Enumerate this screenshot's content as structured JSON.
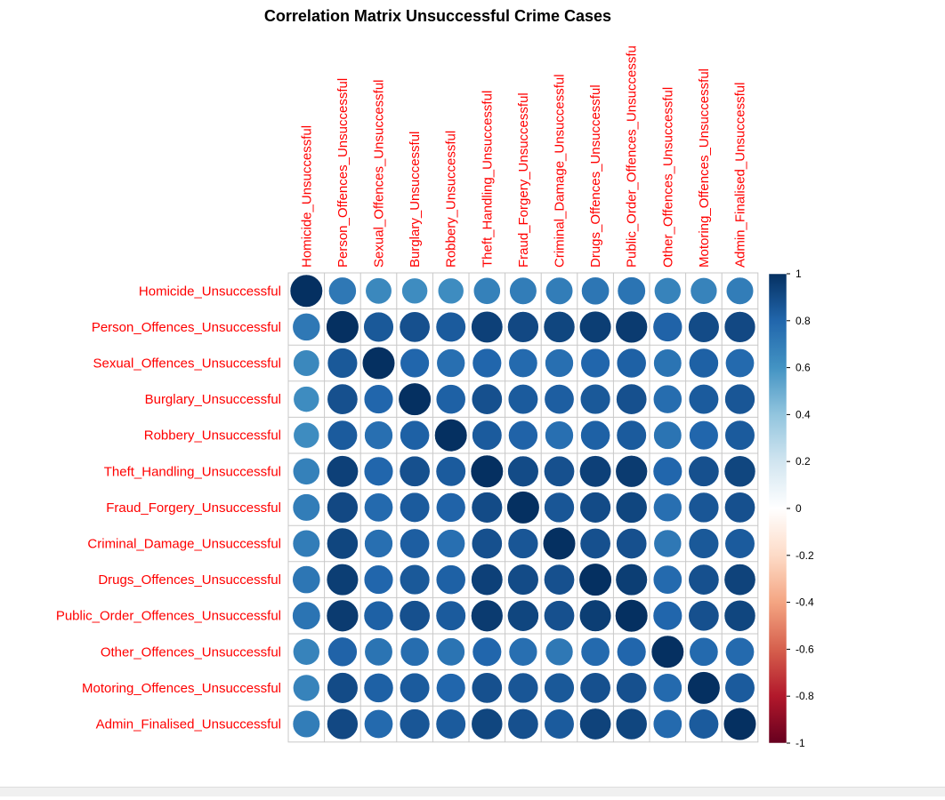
{
  "chart_data": {
    "type": "heatmap",
    "title": "Correlation Matrix Unsuccessful Crime Cases",
    "labels": [
      "Homicide_Unsuccessful",
      "Person_Offences_Unsuccessful",
      "Sexual_Offences_Unsuccessful",
      "Burglary_Unsuccessful",
      "Robbery_Unsuccessful",
      "Theft_Handling_Unsuccessful",
      "Fraud_Forgery_Unsuccessful",
      "Criminal_Damage_Unsuccessful",
      "Drugs_Offences_Unsuccessful",
      "Public_Order_Offences_Unsuccessful",
      "Other_Offences_Unsuccessful",
      "Motoring_Offences_Unsuccessful",
      "Admin_Finalised_Unsuccessful"
    ],
    "column_labels": [
      "Homicide_Unsuccessful",
      "Person_Offences_Unsuccessful",
      "Sexual_Offences_Unsuccessful",
      "Burglary_Unsuccessful",
      "Robbery_Unsuccessful",
      "Theft_Handling_Unsuccessful",
      "Fraud_Forgery_Unsuccessful",
      "Criminal_Damage_Unsuccessful",
      "Drugs_Offences_Unsuccessful",
      "Public_Order_Offences_Unsuccessfu",
      "Other_Offences_Unsuccessful",
      "Motoring_Offences_Unsuccessful",
      "Admin_Finalised_Unsuccessful"
    ],
    "matrix": [
      [
        1.0,
        0.72,
        0.65,
        0.63,
        0.63,
        0.68,
        0.7,
        0.7,
        0.73,
        0.74,
        0.67,
        0.67,
        0.7
      ],
      [
        0.72,
        1.0,
        0.85,
        0.88,
        0.84,
        0.94,
        0.91,
        0.92,
        0.95,
        0.96,
        0.81,
        0.9,
        0.91
      ],
      [
        0.65,
        0.85,
        1.0,
        0.8,
        0.76,
        0.8,
        0.78,
        0.76,
        0.8,
        0.82,
        0.74,
        0.82,
        0.78
      ],
      [
        0.63,
        0.88,
        0.8,
        1.0,
        0.82,
        0.88,
        0.84,
        0.83,
        0.85,
        0.88,
        0.77,
        0.84,
        0.86
      ],
      [
        0.63,
        0.84,
        0.76,
        0.82,
        1.0,
        0.84,
        0.81,
        0.76,
        0.82,
        0.84,
        0.74,
        0.8,
        0.84
      ],
      [
        0.68,
        0.94,
        0.8,
        0.88,
        0.84,
        1.0,
        0.9,
        0.88,
        0.94,
        0.96,
        0.8,
        0.88,
        0.92
      ],
      [
        0.7,
        0.91,
        0.78,
        0.84,
        0.81,
        0.9,
        1.0,
        0.86,
        0.9,
        0.92,
        0.76,
        0.86,
        0.88
      ],
      [
        0.7,
        0.92,
        0.76,
        0.83,
        0.76,
        0.88,
        0.86,
        1.0,
        0.88,
        0.88,
        0.72,
        0.85,
        0.84
      ],
      [
        0.73,
        0.95,
        0.8,
        0.85,
        0.82,
        0.94,
        0.9,
        0.88,
        1.0,
        0.95,
        0.78,
        0.88,
        0.93
      ],
      [
        0.74,
        0.96,
        0.82,
        0.88,
        0.84,
        0.96,
        0.92,
        0.88,
        0.95,
        1.0,
        0.8,
        0.88,
        0.92
      ],
      [
        0.67,
        0.81,
        0.74,
        0.77,
        0.74,
        0.8,
        0.76,
        0.72,
        0.78,
        0.8,
        1.0,
        0.78,
        0.78
      ],
      [
        0.67,
        0.9,
        0.82,
        0.84,
        0.8,
        0.88,
        0.86,
        0.85,
        0.88,
        0.88,
        0.78,
        1.0,
        0.84
      ],
      [
        0.7,
        0.91,
        0.78,
        0.86,
        0.84,
        0.92,
        0.88,
        0.84,
        0.93,
        0.92,
        0.78,
        0.84,
        1.0
      ]
    ],
    "color_scale": {
      "min": -1,
      "max": 1,
      "ticks": [
        1,
        0.8,
        0.6,
        0.4,
        0.2,
        0,
        -0.2,
        -0.4,
        -0.6,
        -0.8,
        -1
      ],
      "palette": [
        "#67001F",
        "#B2182B",
        "#D6604D",
        "#F4A582",
        "#FDDBC7",
        "#FFFFFF",
        "#D1E5F0",
        "#92C5DE",
        "#4393C3",
        "#2166AC",
        "#053061"
      ]
    },
    "label_color": "#FF0000",
    "method": "circle",
    "legend_position": "right"
  }
}
